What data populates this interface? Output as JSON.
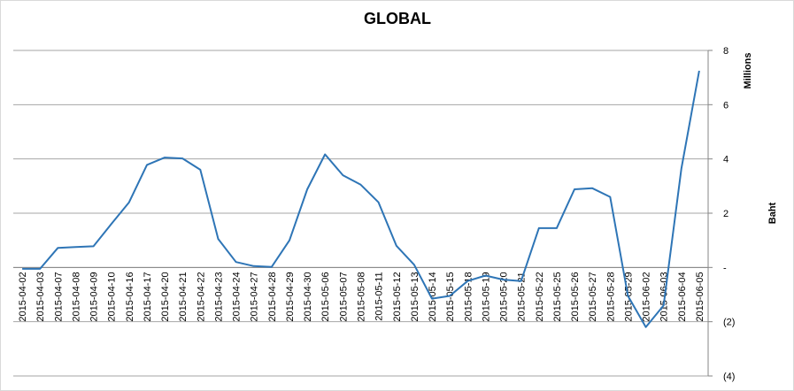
{
  "chart_data": {
    "type": "line",
    "title": "GLOBAL",
    "y_axis_title": "Baht",
    "y_display_units": "Millions",
    "categories": [
      "2015-04-02",
      "2015-04-03",
      "2015-04-07",
      "2015-04-08",
      "2015-04-09",
      "2015-04-10",
      "2015-04-16",
      "2015-04-17",
      "2015-04-20",
      "2015-04-21",
      "2015-04-22",
      "2015-04-23",
      "2015-04-24",
      "2015-04-27",
      "2015-04-28",
      "2015-04-29",
      "2015-04-30",
      "2015-05-06",
      "2015-05-07",
      "2015-05-08",
      "2015-05-11",
      "2015-05-12",
      "2015-05-13",
      "2015-05-14",
      "2015-05-15",
      "2015-05-18",
      "2015-05-19",
      "2015-05-20",
      "2015-05-21",
      "2015-05-22",
      "2015-05-25",
      "2015-05-26",
      "2015-05-27",
      "2015-05-28",
      "2015-05-29",
      "2015-06-02",
      "2015-06-03",
      "2015-06-04",
      "2015-06-05"
    ],
    "values": [
      -0.05,
      -0.05,
      0.72,
      0.75,
      0.78,
      1.6,
      2.4,
      3.78,
      4.05,
      4.02,
      3.6,
      1.05,
      0.2,
      0.05,
      0.02,
      1.0,
      2.88,
      4.17,
      3.4,
      3.05,
      2.4,
      0.8,
      0.1,
      -1.15,
      -1.05,
      -0.5,
      -0.3,
      -0.45,
      -0.5,
      1.45,
      1.45,
      2.88,
      2.92,
      2.6,
      -1.05,
      -2.2,
      -1.4,
      3.65,
      7.25
    ],
    "color": "#2e75b6",
    "ylim": [
      -4,
      8
    ],
    "yticks": [
      {
        "value": -4,
        "label": "(4)"
      },
      {
        "value": -2,
        "label": "(2)"
      },
      {
        "value": 0,
        "label": "-"
      },
      2,
      4,
      6,
      8
    ],
    "grid": true
  }
}
